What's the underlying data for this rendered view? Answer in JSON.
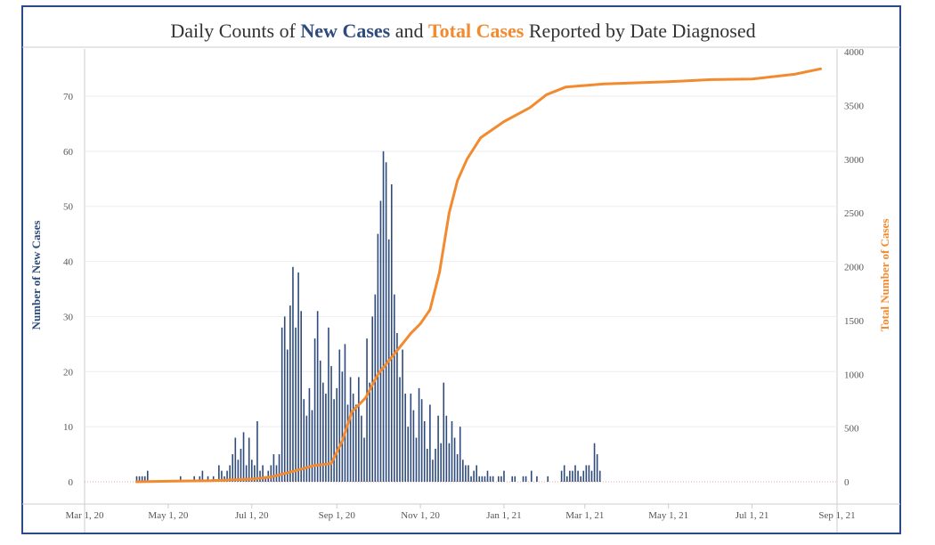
{
  "header": {
    "title_pre": "Daily Counts of ",
    "title_new": "New Cases",
    "title_mid": " and ",
    "title_total": "Total Cases",
    "title_post": " Reported by Date Diagnosed"
  },
  "colors": {
    "new_cases": "#2f4b7c",
    "total_cases": "#f28a30",
    "frame": "#2a4a8a"
  },
  "chart_data": {
    "type": "bar",
    "combo": "bar + line (dual axis)",
    "title": "Daily Counts of New Cases and Total Cases Reported by Date Diagnosed",
    "ylabel": "Number of New Cases",
    "y2label": "Total Number of Cases",
    "ylim": [
      0,
      78
    ],
    "y2lim": [
      0,
      4000
    ],
    "yticks": [
      0,
      10,
      20,
      30,
      40,
      50,
      60,
      70
    ],
    "y2ticks": [
      0,
      500,
      1000,
      1500,
      2000,
      2500,
      3000,
      3500,
      4000
    ],
    "x_start": "2020-03-01",
    "x_end": "2021-09-01",
    "xticks": [
      "Mar 1, 20",
      "May 1, 20",
      "Jul 1, 20",
      "Sep 1, 20",
      "Nov 1, 20",
      "Jan 1, 21",
      "Mar 1, 21",
      "May 1, 21",
      "Jul 1, 21",
      "Sep 1, 21"
    ],
    "grid": "horizontal",
    "series": [
      {
        "name": "New Cases",
        "axis": "left",
        "kind": "bar",
        "x_start": "2020-04-08",
        "step_days": 2,
        "values": [
          1,
          1,
          1,
          1,
          2,
          0,
          0,
          0,
          0,
          0,
          0,
          0,
          0,
          0,
          0,
          0,
          1,
          0,
          0,
          0,
          0,
          1,
          0,
          1,
          2,
          0,
          1,
          0,
          1,
          0,
          3,
          2,
          1,
          2,
          3,
          5,
          8,
          4,
          6,
          9,
          3,
          8,
          4,
          3,
          11,
          2,
          3,
          1,
          2,
          3,
          5,
          3,
          5,
          28,
          30,
          24,
          32,
          39,
          28,
          38,
          31,
          15,
          12,
          17,
          13,
          26,
          31,
          22,
          18,
          16,
          28,
          21,
          15,
          17,
          24,
          20,
          25,
          14,
          19,
          16,
          14,
          19,
          12,
          8,
          26,
          18,
          30,
          34,
          45,
          51,
          60,
          58,
          44,
          54,
          34,
          27,
          19,
          24,
          16,
          10,
          16,
          13,
          8,
          17,
          15,
          11,
          6,
          14,
          4,
          6,
          12,
          7,
          18,
          12,
          7,
          11,
          8,
          5,
          10,
          4,
          3,
          3,
          1,
          2,
          3,
          1,
          1,
          1,
          2,
          1,
          1,
          0,
          1,
          1,
          2,
          0,
          0,
          1,
          1,
          0,
          0,
          1,
          1,
          0,
          2,
          0,
          1,
          0,
          0,
          0,
          1,
          0,
          0,
          0,
          0,
          2,
          3,
          1,
          2,
          2,
          3,
          2,
          1,
          2,
          3,
          3,
          2,
          7,
          5,
          2
        ]
      },
      {
        "name": "Total Cases",
        "axis": "right",
        "kind": "line",
        "points": [
          [
            "2020-04-08",
            0
          ],
          [
            "2020-05-01",
            5
          ],
          [
            "2020-06-01",
            10
          ],
          [
            "2020-07-01",
            25
          ],
          [
            "2020-07-15",
            45
          ],
          [
            "2020-08-01",
            100
          ],
          [
            "2020-08-15",
            150
          ],
          [
            "2020-08-28",
            170
          ],
          [
            "2020-09-05",
            380
          ],
          [
            "2020-09-12",
            650
          ],
          [
            "2020-09-22",
            780
          ],
          [
            "2020-10-01",
            1000
          ],
          [
            "2020-10-15",
            1220
          ],
          [
            "2020-10-25",
            1380
          ],
          [
            "2020-11-01",
            1470
          ],
          [
            "2020-11-08",
            1600
          ],
          [
            "2020-11-15",
            1950
          ],
          [
            "2020-11-22",
            2500
          ],
          [
            "2020-11-28",
            2800
          ],
          [
            "2020-12-05",
            3000
          ],
          [
            "2020-12-15",
            3200
          ],
          [
            "2021-01-01",
            3350
          ],
          [
            "2021-01-20",
            3480
          ],
          [
            "2021-02-01",
            3600
          ],
          [
            "2021-02-15",
            3670
          ],
          [
            "2021-03-15",
            3700
          ],
          [
            "2021-05-01",
            3720
          ],
          [
            "2021-06-01",
            3740
          ],
          [
            "2021-07-01",
            3745
          ],
          [
            "2021-08-01",
            3790
          ],
          [
            "2021-08-20",
            3840
          ]
        ]
      }
    ]
  }
}
